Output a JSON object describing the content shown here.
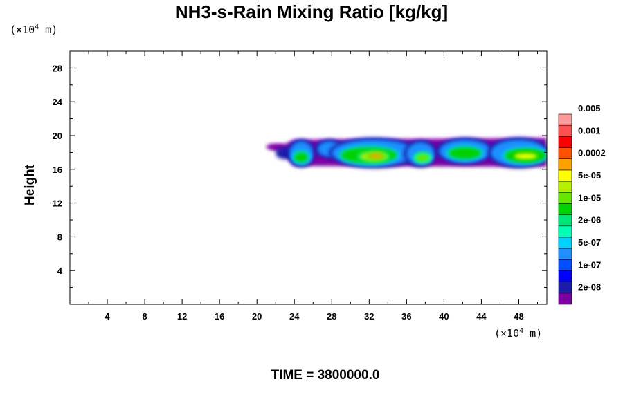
{
  "chart_data": {
    "type": "heatmap",
    "title": "NH3-s-Rain Mixing Ratio [kg/kg]",
    "xunit": "(×10",
    "xunit_exp": "4",
    "xunit_tail": " m)",
    "yunit": "(×10",
    "yunit_exp": "4",
    "yunit_tail": " m)",
    "ylabel": "Height",
    "xlim": [
      0,
      51
    ],
    "ylim": [
      0,
      30
    ],
    "xticks": [
      "4",
      "8",
      "12",
      "16",
      "20",
      "24",
      "28",
      "32",
      "36",
      "40",
      "44",
      "48"
    ],
    "yticks": [
      "4",
      "8",
      "12",
      "16",
      "20",
      "24",
      "28"
    ],
    "footer": "TIME = 3800000.0",
    "colorbar": {
      "colors": [
        "#7e00a5",
        "#1c1caa",
        "#0000ff",
        "#0050ff",
        "#1e90ff",
        "#00d2ff",
        "#00ffb4",
        "#00e678",
        "#00d200",
        "#64e600",
        "#b4f000",
        "#ffff00",
        "#ffa000",
        "#ff5000",
        "#ff0000",
        "#ff5050",
        "#ff9a9a"
      ],
      "labels": [
        "2e-08",
        "1e-07",
        "5e-07",
        "2e-06",
        "1e-05",
        "5e-05",
        "0.0002",
        "0.001",
        "0.005"
      ]
    },
    "field": {
      "extent_x": [
        21,
        51
      ],
      "extent_y": [
        16.3,
        19.6
      ],
      "cells": [
        {
          "x": [
            21,
            23
          ],
          "y": [
            18.3,
            19.0
          ],
          "level": 0
        },
        {
          "x": [
            22,
            24
          ],
          "y": [
            17.2,
            18.6
          ],
          "level": 1
        },
        {
          "x": [
            23.5,
            26
          ],
          "y": [
            16.5,
            19.3
          ],
          "level": 4
        },
        {
          "x": [
            24,
            25.5
          ],
          "y": [
            16.8,
            18.0
          ],
          "level": 8
        },
        {
          "x": [
            26.5,
            29
          ],
          "y": [
            17.5,
            19.3
          ],
          "level": 4
        },
        {
          "x": [
            28,
            37
          ],
          "y": [
            16.4,
            19.5
          ],
          "level": 4
        },
        {
          "x": [
            29,
            35
          ],
          "y": [
            16.7,
            18.6
          ],
          "level": 8
        },
        {
          "x": [
            31,
            34
          ],
          "y": [
            17.0,
            18.0
          ],
          "level": 10
        },
        {
          "x": [
            32,
            33.5
          ],
          "y": [
            17.3,
            17.8
          ],
          "level": 12
        },
        {
          "x": [
            36,
            39
          ],
          "y": [
            16.5,
            19.2
          ],
          "level": 4
        },
        {
          "x": [
            37,
            38.5
          ],
          "y": [
            16.9,
            17.8
          ],
          "level": 9
        },
        {
          "x": [
            39.5,
            45
          ],
          "y": [
            16.8,
            19.5
          ],
          "level": 4
        },
        {
          "x": [
            40.5,
            44
          ],
          "y": [
            17.2,
            18.6
          ],
          "level": 8
        },
        {
          "x": [
            45,
            51
          ],
          "y": [
            16.4,
            19.5
          ],
          "level": 4
        },
        {
          "x": [
            46.5,
            51
          ],
          "y": [
            16.8,
            18.4
          ],
          "level": 8
        },
        {
          "x": [
            47.5,
            50
          ],
          "y": [
            17.2,
            17.9
          ],
          "level": 11
        }
      ]
    }
  }
}
